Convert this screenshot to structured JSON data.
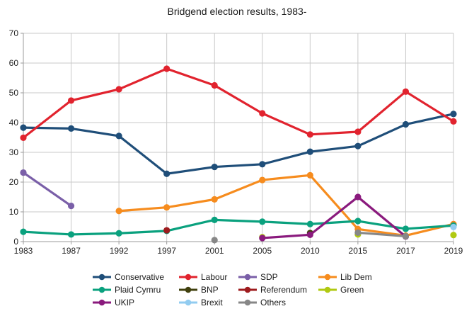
{
  "chart_data": {
    "type": "line",
    "title": "Bridgend election results, 1983-",
    "xlabel": "",
    "ylabel": "",
    "categories": [
      "1983",
      "1987",
      "1992",
      "1997",
      "2001",
      "2005",
      "2010",
      "2015",
      "2017",
      "2019"
    ],
    "ylim": [
      0,
      70
    ],
    "yticks": [
      0,
      10,
      20,
      30,
      40,
      50,
      60,
      70
    ],
    "grid": true,
    "legend_position": "bottom",
    "series": [
      {
        "name": "Conservative",
        "color": "#1f4e79",
        "values": [
          38.3,
          38.0,
          35.5,
          22.8,
          25.1,
          26.0,
          30.2,
          32.1,
          39.4,
          42.9
        ]
      },
      {
        "name": "Labour",
        "color": "#e1232e",
        "values": [
          34.9,
          47.4,
          51.2,
          58.1,
          52.5,
          43.1,
          36.0,
          36.9,
          50.4,
          40.4
        ]
      },
      {
        "name": "SDP",
        "color": "#7a5fa8",
        "values": [
          23.2,
          12.0,
          null,
          null,
          null,
          null,
          null,
          null,
          null,
          null
        ]
      },
      {
        "name": "Lib Dem",
        "color": "#f68c1e",
        "values": [
          null,
          null,
          10.3,
          11.5,
          14.2,
          20.7,
          22.3,
          4.2,
          2.0,
          5.9
        ]
      },
      {
        "name": "Plaid Cymru",
        "color": "#0aa17e",
        "values": [
          3.3,
          2.4,
          2.8,
          3.6,
          7.3,
          6.7,
          5.9,
          6.9,
          4.3,
          5.4
        ]
      },
      {
        "name": "BNP",
        "color": "#40400e",
        "values": [
          null,
          null,
          null,
          null,
          null,
          null,
          2.9,
          null,
          null,
          null
        ]
      },
      {
        "name": "Referendum",
        "color": "#9e1b1e",
        "values": [
          null,
          null,
          null,
          3.8,
          null,
          null,
          null,
          null,
          null,
          null
        ]
      },
      {
        "name": "Green",
        "color": "#b0c911",
        "values": [
          null,
          null,
          null,
          null,
          null,
          1.5,
          null,
          2.4,
          null,
          2.2
        ]
      },
      {
        "name": "UKIP",
        "color": "#8a1a7d",
        "values": [
          null,
          null,
          null,
          null,
          null,
          1.2,
          2.3,
          15.0,
          1.7,
          null
        ]
      },
      {
        "name": "Brexit",
        "color": "#92ccf0",
        "values": [
          null,
          null,
          null,
          null,
          null,
          null,
          null,
          null,
          null,
          4.9
        ]
      },
      {
        "name": "Others",
        "color": "#878787",
        "values": [
          null,
          null,
          null,
          null,
          0.5,
          null,
          null,
          3.0,
          1.8,
          null
        ]
      }
    ]
  },
  "colors": {
    "background": "#ffffff",
    "grid": "#c9c9c9",
    "axis": "#9b9b9b",
    "text": "#262626",
    "title_text": "#1a1a1a"
  }
}
